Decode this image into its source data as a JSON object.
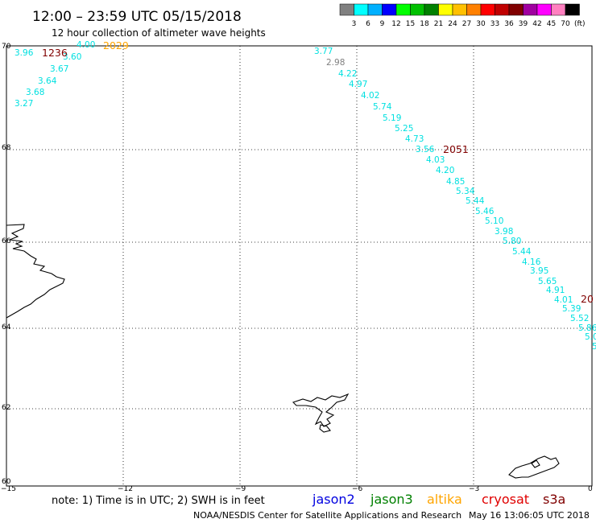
{
  "header": {
    "title": "12:00 – 23:59 UTC 05/15/2018",
    "subtitle": "12 hour collection of altimeter wave heights"
  },
  "colorbar": {
    "colors": [
      "#808080",
      "#00ffff",
      "#00b0ff",
      "#0000ff",
      "#00ff00",
      "#00c000",
      "#008000",
      "#ffff00",
      "#ffc000",
      "#ff8000",
      "#ff0000",
      "#c00000",
      "#800000",
      "#a000a0",
      "#ff00ff",
      "#ff80c0",
      "#000000"
    ],
    "labels": [
      "3",
      "6",
      "9",
      "12",
      "15",
      "18",
      "21",
      "24",
      "27",
      "30",
      "33",
      "36",
      "39",
      "42",
      "45",
      "70"
    ],
    "unit": "(ft)"
  },
  "map": {
    "lat_ticks": [
      "70",
      "68",
      "66",
      "64",
      "62",
      "60"
    ],
    "lon_ticks": [
      "−15",
      "−12",
      "−9",
      "−6",
      "−3",
      "0"
    ]
  },
  "passes": [
    {
      "label": "1236",
      "color": "#800000"
    },
    {
      "label": "2029",
      "color": "#ffa500"
    },
    {
      "label": "2051",
      "color": "#800000"
    },
    {
      "label": "20",
      "color": "#800000"
    }
  ],
  "values": [
    {
      "v": "3.96",
      "c": "#00e0e0"
    },
    {
      "v": "4.00",
      "c": "#00e0e0"
    },
    {
      "v": "3.60",
      "c": "#00e0e0"
    },
    {
      "v": "3.67",
      "c": "#00e0e0"
    },
    {
      "v": "3.64",
      "c": "#00e0e0"
    },
    {
      "v": "3.68",
      "c": "#00e0e0"
    },
    {
      "v": "3.27",
      "c": "#00e0e0"
    },
    {
      "v": "3.77",
      "c": "#00e0e0"
    },
    {
      "v": "2.98",
      "c": "#808080"
    },
    {
      "v": "4.22",
      "c": "#00e0e0"
    },
    {
      "v": "4.97",
      "c": "#00e0e0"
    },
    {
      "v": "4.02",
      "c": "#00e0e0"
    },
    {
      "v": "5.74",
      "c": "#00e0e0"
    },
    {
      "v": "5.19",
      "c": "#00e0e0"
    },
    {
      "v": "5.25",
      "c": "#00e0e0"
    },
    {
      "v": "4.73",
      "c": "#00e0e0"
    },
    {
      "v": "3.56",
      "c": "#00e0e0"
    },
    {
      "v": "4.03",
      "c": "#00e0e0"
    },
    {
      "v": "4.20",
      "c": "#00e0e0"
    },
    {
      "v": "4.85",
      "c": "#00e0e0"
    },
    {
      "v": "5.34",
      "c": "#00e0e0"
    },
    {
      "v": "5.44",
      "c": "#00e0e0"
    },
    {
      "v": "5.46",
      "c": "#00e0e0"
    },
    {
      "v": "5.10",
      "c": "#00e0e0"
    },
    {
      "v": "3.98",
      "c": "#00e0e0"
    },
    {
      "v": "5.80",
      "c": "#00e0e0"
    },
    {
      "v": "5.44",
      "c": "#00e0e0"
    },
    {
      "v": "4.16",
      "c": "#00e0e0"
    },
    {
      "v": "3.95",
      "c": "#00e0e0"
    },
    {
      "v": "5.65",
      "c": "#00e0e0"
    },
    {
      "v": "4.91",
      "c": "#00e0e0"
    },
    {
      "v": "4.01",
      "c": "#00e0e0"
    },
    {
      "v": "5.39",
      "c": "#00e0e0"
    },
    {
      "v": "5.52",
      "c": "#00e0e0"
    },
    {
      "v": "5.86",
      "c": "#00e0e0"
    },
    {
      "v": "5.0",
      "c": "#00e0e0"
    },
    {
      "v": "5",
      "c": "#00e0e0"
    }
  ],
  "footer": {
    "note": "note:  1) Time is in UTC;  2) SWH is in feet",
    "credit": "NOAA/NESDIS Center for Satellite Applications and Research",
    "timestamp": "May 16 13:06:05 UTC 2018"
  },
  "legend": [
    {
      "name": "jason2",
      "color": "#0000e0"
    },
    {
      "name": "jason3",
      "color": "#008000"
    },
    {
      "name": "altika",
      "color": "#ffa500"
    },
    {
      "name": "cryosat",
      "color": "#e00000"
    },
    {
      "name": "s3a",
      "color": "#800000"
    }
  ]
}
